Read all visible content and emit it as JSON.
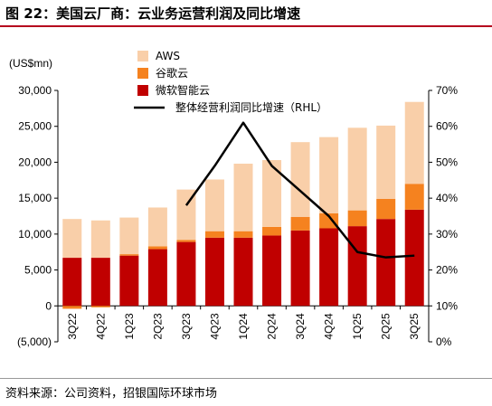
{
  "header": {
    "title": "图 22：美国云厂商：云业务运营利润及同比增速"
  },
  "footer": {
    "source": "资料来源：公司资料，招银国际环球市场"
  },
  "chart_data": {
    "type": "bar",
    "stacked": true,
    "unit_label": "(US$mn)",
    "categories": [
      "3Q22",
      "4Q22",
      "1Q23",
      "2Q23",
      "3Q23",
      "4Q23",
      "1Q24",
      "2Q24",
      "3Q24",
      "4Q24",
      "1Q25",
      "2Q25",
      "3Q25"
    ],
    "series": [
      {
        "name": "微软智能云",
        "color": "#c00000",
        "values": [
          6700,
          6700,
          7000,
          7900,
          8900,
          9500,
          9500,
          9800,
          10500,
          10800,
          11100,
          12100,
          13400
        ]
      },
      {
        "name": "谷歌云",
        "color": "#f5821f",
        "values": [
          -400,
          -200,
          200,
          400,
          300,
          900,
          900,
          1200,
          1900,
          2100,
          2200,
          2800,
          3600
        ]
      },
      {
        "name": "AWS",
        "color": "#f9cfa9",
        "values": [
          5400,
          5200,
          5100,
          5400,
          7000,
          7200,
          9400,
          9300,
          10400,
          10600,
          11500,
          10200,
          11400
        ]
      }
    ],
    "line": {
      "name": "整体经营利润同比增速（RHL）",
      "color": "#000000",
      "axis": "right",
      "values": [
        null,
        null,
        null,
        null,
        0.38,
        0.49,
        0.61,
        0.49,
        0.42,
        0.35,
        0.25,
        0.235,
        0.24
      ]
    },
    "y_left": {
      "min": -5000,
      "max": 30000,
      "ticks": [
        -5000,
        0,
        5000,
        10000,
        15000,
        20000,
        25000,
        30000
      ],
      "tick_labels": [
        "(5,000)",
        "0",
        "5,000",
        "10,000",
        "15,000",
        "20,000",
        "25,000",
        "30,000"
      ]
    },
    "y_right": {
      "min": 0,
      "max": 0.7,
      "ticks": [
        0,
        0.1,
        0.2,
        0.3,
        0.4,
        0.5,
        0.6,
        0.7
      ],
      "tick_labels": [
        "0%",
        "10%",
        "20%",
        "30%",
        "40%",
        "50%",
        "60%",
        "70%"
      ]
    },
    "legend": {
      "position": "top",
      "entries": [
        "AWS",
        "谷歌云",
        "微软智能云",
        "整体经营利润同比增速（RHL）"
      ]
    },
    "grid": false
  }
}
